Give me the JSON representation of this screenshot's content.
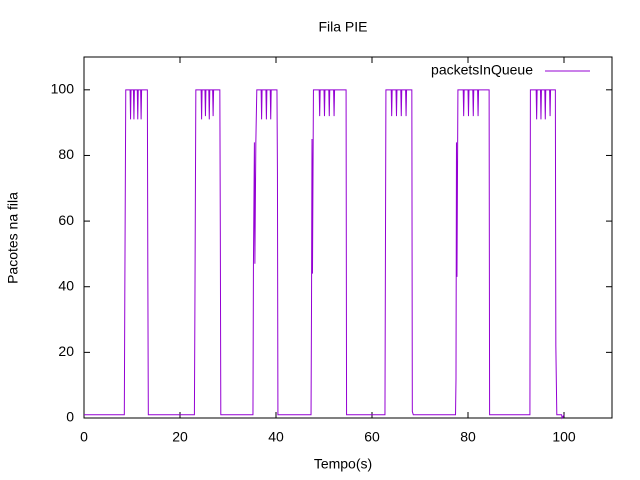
{
  "chart_data": {
    "type": "line",
    "title": "Fila PIE",
    "xlabel": "Tempo(s)",
    "ylabel": "Pacotes na fila",
    "xlim": [
      0,
      110
    ],
    "ylim": [
      0,
      110
    ],
    "xticks": [
      0,
      20,
      40,
      60,
      80,
      100
    ],
    "yticks": [
      0,
      20,
      40,
      60,
      80,
      100
    ],
    "legend": "top-right",
    "x": [
      0,
      8.4,
      8.5,
      8.7,
      9.6,
      9.7,
      9.8,
      10.3,
      10.4,
      10.5,
      11.1,
      11.2,
      11.3,
      11.8,
      11.9,
      12.0,
      13.2,
      13.3,
      13.4,
      23.0,
      23.1,
      23.3,
      24.4,
      24.5,
      24.6,
      25.2,
      25.3,
      25.4,
      26.0,
      26.1,
      26.2,
      26.8,
      26.9,
      27.0,
      28.3,
      28.4,
      28.5,
      35.2,
      35.3,
      35.5,
      35.6,
      35.8,
      36.0,
      36.9,
      37.0,
      37.1,
      37.9,
      38.0,
      38.1,
      38.8,
      38.9,
      39.0,
      40.2,
      40.3,
      40.4,
      47.3,
      47.4,
      47.5,
      47.6,
      47.8,
      49.0,
      49.1,
      49.2,
      50.0,
      50.1,
      50.2,
      51.0,
      51.1,
      51.2,
      52.0,
      52.1,
      52.2,
      54.6,
      54.7,
      62.7,
      62.9,
      64.0,
      64.1,
      64.2,
      65.0,
      65.1,
      65.2,
      66.0,
      66.1,
      66.2,
      67.0,
      67.1,
      67.2,
      68.3,
      68.4,
      68.6,
      77.4,
      77.5,
      77.6,
      77.7,
      77.9,
      79.0,
      79.1,
      79.2,
      80.0,
      80.1,
      80.2,
      81.0,
      81.1,
      81.2,
      82.0,
      82.1,
      82.2,
      84.4,
      84.5,
      92.9,
      93.0,
      94.2,
      94.3,
      94.4,
      95.1,
      95.2,
      95.3,
      96.0,
      96.1,
      96.2,
      97.0,
      97.1,
      97.2,
      98.2,
      98.3,
      98.5,
      99.5,
      99.6,
      100
    ],
    "series": [
      {
        "name": "packetsInQueue",
        "color": "#9400d3",
        "values": [
          1,
          1,
          37,
          100,
          100,
          91,
          100,
          100,
          91,
          100,
          100,
          91,
          100,
          100,
          91,
          100,
          100,
          43,
          1,
          1,
          32,
          100,
          100,
          91,
          100,
          100,
          92,
          100,
          100,
          91,
          100,
          100,
          92,
          100,
          100,
          57,
          1,
          1,
          47,
          84,
          47,
          84,
          100,
          100,
          91,
          100,
          100,
          91,
          100,
          100,
          91,
          100,
          100,
          75,
          1,
          1,
          35,
          85,
          44,
          100,
          100,
          92,
          100,
          100,
          92,
          100,
          100,
          92,
          100,
          100,
          92,
          100,
          100,
          1,
          1,
          100,
          100,
          92,
          100,
          100,
          92,
          100,
          100,
          92,
          100,
          100,
          92,
          100,
          100,
          2,
          1,
          1,
          12,
          84,
          43,
          100,
          100,
          92,
          100,
          100,
          92,
          100,
          100,
          92,
          100,
          100,
          92,
          100,
          100,
          1,
          1,
          100,
          100,
          91,
          100,
          100,
          91,
          100,
          100,
          91,
          100,
          100,
          92,
          100,
          100,
          22,
          1,
          1,
          0,
          1
        ]
      }
    ]
  }
}
